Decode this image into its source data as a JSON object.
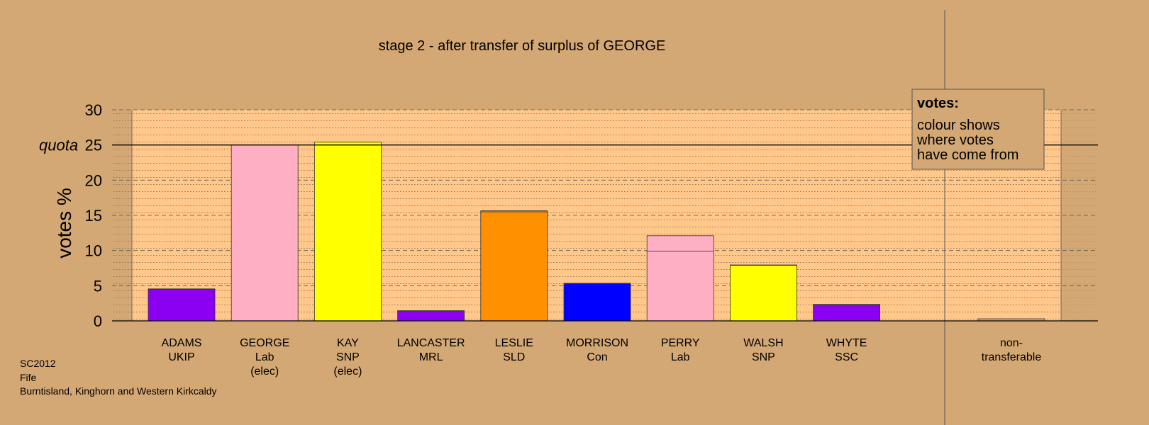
{
  "chart_data": {
    "type": "bar",
    "title": "stage 2 - after transfer of surplus of GEORGE",
    "ylabel": "votes %",
    "quota_label": "quota",
    "quota": 25,
    "ylim": [
      0,
      30
    ],
    "yticks": [
      0,
      5,
      10,
      15,
      20,
      25,
      30
    ],
    "grid": true,
    "categories": [
      {
        "lines": [
          "ADAMS",
          "UKIP"
        ],
        "color": "#8b00f0",
        "segments": [
          4.5
        ],
        "transfer": 0.05
      },
      {
        "lines": [
          "GEORGE",
          "Lab",
          "(elec)"
        ],
        "color": "#ffafc3",
        "segments": [
          25
        ],
        "transfer": 0
      },
      {
        "lines": [
          "KAY",
          "SNP",
          "(elec)"
        ],
        "color": "#ffff00",
        "segments": [
          25.4
        ],
        "transfer": 0
      },
      {
        "lines": [
          "LANCASTER",
          "MRL"
        ],
        "color": "#8b00f0",
        "segments": [
          1.4
        ],
        "transfer": 0.05
      },
      {
        "lines": [
          "LESLIE",
          "SLD"
        ],
        "color": "#ff9000",
        "segments": [
          15.5
        ],
        "transfer": 0.15
      },
      {
        "lines": [
          "MORRISON",
          "Con"
        ],
        "color": "#0000ff",
        "segments": [
          5.3
        ],
        "transfer": 0.05
      },
      {
        "lines": [
          "PERRY",
          "Lab"
        ],
        "color": "#ffafc3",
        "segments": [
          9.9,
          2.2
        ],
        "transfer": 0
      },
      {
        "lines": [
          "WALSH",
          "SNP"
        ],
        "color": "#ffff00",
        "segments": [
          7.9
        ],
        "transfer": 0.05
      },
      {
        "lines": [
          "WHYTE",
          "SSC"
        ],
        "color": "#8b00f0",
        "segments": [
          2.3
        ],
        "transfer": 0.05
      },
      {
        "lines": [
          "non-",
          "transferable"
        ],
        "color": "#d4a874",
        "segments": [
          0.3
        ],
        "transfer": 0
      }
    ],
    "legend": {
      "title": "votes:",
      "lines": [
        "colour shows",
        "where votes",
        "have come from"
      ],
      "placement": "top-right"
    }
  },
  "footer": [
    "SC2012",
    "Fife",
    "Burntisland, Kinghorn and Western Kirkcaldy"
  ],
  "colors": {
    "background": "#d4a874",
    "plot_area": "#ffc88a",
    "transfer": "#ff8c00"
  }
}
